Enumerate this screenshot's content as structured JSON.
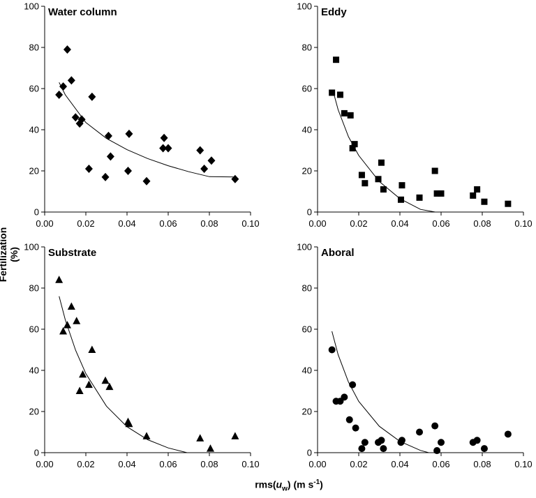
{
  "ylabel": "Fertilization (%)",
  "xlabel": {
    "prefix": "rms(",
    "var": "u",
    "sub": "w",
    "unit": ") (m s",
    "exp": "-1",
    "close": ")"
  },
  "chart_data": [
    {
      "type": "scatter",
      "title": "Water column",
      "marker": "diamond",
      "xlim": [
        0,
        0.1
      ],
      "ylim": [
        0,
        100
      ],
      "xticks": [
        "0.00",
        "0.02",
        "0.04",
        "0.06",
        "0.08",
        "0.10"
      ],
      "yticks": [
        "0",
        "20",
        "40",
        "60",
        "80",
        "100"
      ],
      "x": [
        0.007,
        0.009,
        0.011,
        0.013,
        0.015,
        0.017,
        0.018,
        0.0215,
        0.023,
        0.0295,
        0.031,
        0.032,
        0.0405,
        0.041,
        0.0495,
        0.0575,
        0.058,
        0.06,
        0.0755,
        0.0775,
        0.081,
        0.0925
      ],
      "y": [
        57,
        61,
        79,
        64,
        46,
        43,
        45,
        21,
        56,
        17,
        37,
        27,
        20,
        38,
        15,
        31,
        36,
        31,
        30,
        21,
        25,
        16
      ],
      "trend": [
        [
          0.007,
          63
        ],
        [
          0.01,
          57
        ],
        [
          0.02,
          43.5
        ],
        [
          0.03,
          35.8
        ],
        [
          0.04,
          30.3
        ],
        [
          0.05,
          26
        ],
        [
          0.06,
          22.5
        ],
        [
          0.07,
          19.6
        ],
        [
          0.08,
          17.2
        ],
        [
          0.0925,
          17
        ]
      ]
    },
    {
      "type": "scatter",
      "title": "Eddy",
      "marker": "square",
      "xlim": [
        0,
        0.1
      ],
      "ylim": [
        0,
        100
      ],
      "xticks": [
        "0.00",
        "0.02",
        "0.04",
        "0.06",
        "0.08",
        "0.10"
      ],
      "yticks": [
        "0",
        "20",
        "40",
        "60",
        "80",
        "100"
      ],
      "x": [
        0.007,
        0.009,
        0.011,
        0.013,
        0.016,
        0.017,
        0.018,
        0.0215,
        0.023,
        0.0295,
        0.031,
        0.032,
        0.0405,
        0.041,
        0.0495,
        0.057,
        0.058,
        0.06,
        0.0755,
        0.0775,
        0.081,
        0.0925
      ],
      "y": [
        58,
        74,
        57,
        48,
        47,
        31,
        33,
        18,
        14,
        16,
        24,
        11,
        6,
        13,
        7,
        20,
        9,
        9,
        8,
        11,
        5,
        4
      ],
      "trend": [
        [
          0.0075,
          59
        ],
        [
          0.01,
          49.7
        ],
        [
          0.015,
          36.6
        ],
        [
          0.02,
          27.5
        ],
        [
          0.03,
          14.8
        ],
        [
          0.04,
          6.5
        ],
        [
          0.05,
          1.3
        ],
        [
          0.06,
          -0.5
        ],
        [
          0.07,
          -1.2
        ],
        [
          0.08,
          -1.4
        ],
        [
          0.082,
          -1.4
        ]
      ]
    },
    {
      "type": "scatter",
      "title": "Substrate",
      "marker": "triangle",
      "xlim": [
        0,
        0.1
      ],
      "ylim": [
        0,
        100
      ],
      "xticks": [
        "0.00",
        "0.02",
        "0.04",
        "0.06",
        "0.08",
        "0.10"
      ],
      "yticks": [
        "0",
        "20",
        "40",
        "60",
        "80",
        "100"
      ],
      "x": [
        0.007,
        0.009,
        0.011,
        0.013,
        0.0155,
        0.017,
        0.0185,
        0.0215,
        0.023,
        0.0295,
        0.0315,
        0.0405,
        0.041,
        0.0495,
        0.0755,
        0.0805,
        0.0925
      ],
      "y": [
        84,
        59,
        62,
        71,
        64,
        30,
        38,
        33,
        50,
        35,
        32,
        15,
        14,
        8,
        7,
        2,
        8
      ],
      "trend": [
        [
          0.007,
          76
        ],
        [
          0.01,
          64.6
        ],
        [
          0.015,
          49.8
        ],
        [
          0.02,
          38.4
        ],
        [
          0.03,
          22.6
        ],
        [
          0.04,
          12.6
        ],
        [
          0.05,
          6.3
        ],
        [
          0.06,
          2.3
        ],
        [
          0.07,
          -0.2
        ],
        [
          0.08,
          -1.8
        ],
        [
          0.084,
          -2.3
        ]
      ]
    },
    {
      "type": "scatter",
      "title": "Aboral",
      "marker": "circle",
      "xlim": [
        0,
        0.1
      ],
      "ylim": [
        0,
        100
      ],
      "xticks": [
        "0.00",
        "0.02",
        "0.04",
        "0.06",
        "0.08",
        "0.10"
      ],
      "yticks": [
        "0",
        "20",
        "40",
        "60",
        "80",
        "100"
      ],
      "x": [
        0.007,
        0.009,
        0.011,
        0.013,
        0.0155,
        0.017,
        0.0185,
        0.0215,
        0.023,
        0.0295,
        0.031,
        0.032,
        0.0405,
        0.041,
        0.0495,
        0.057,
        0.058,
        0.06,
        0.0755,
        0.0775,
        0.081,
        0.0925
      ],
      "y": [
        50,
        25,
        25,
        27,
        16,
        33,
        12,
        2,
        5,
        5,
        6,
        2,
        5,
        6,
        10,
        13,
        1,
        5,
        5,
        6,
        2,
        9
      ],
      "trend": [
        [
          0.007,
          59
        ],
        [
          0.01,
          47.6
        ],
        [
          0.015,
          34.3
        ],
        [
          0.02,
          24.9
        ],
        [
          0.03,
          12.8
        ],
        [
          0.04,
          5.5
        ],
        [
          0.05,
          1.1
        ],
        [
          0.06,
          -1.6
        ],
        [
          0.07,
          -3.3
        ],
        [
          0.08,
          -4.4
        ],
        [
          0.081,
          -4.5
        ]
      ]
    }
  ]
}
